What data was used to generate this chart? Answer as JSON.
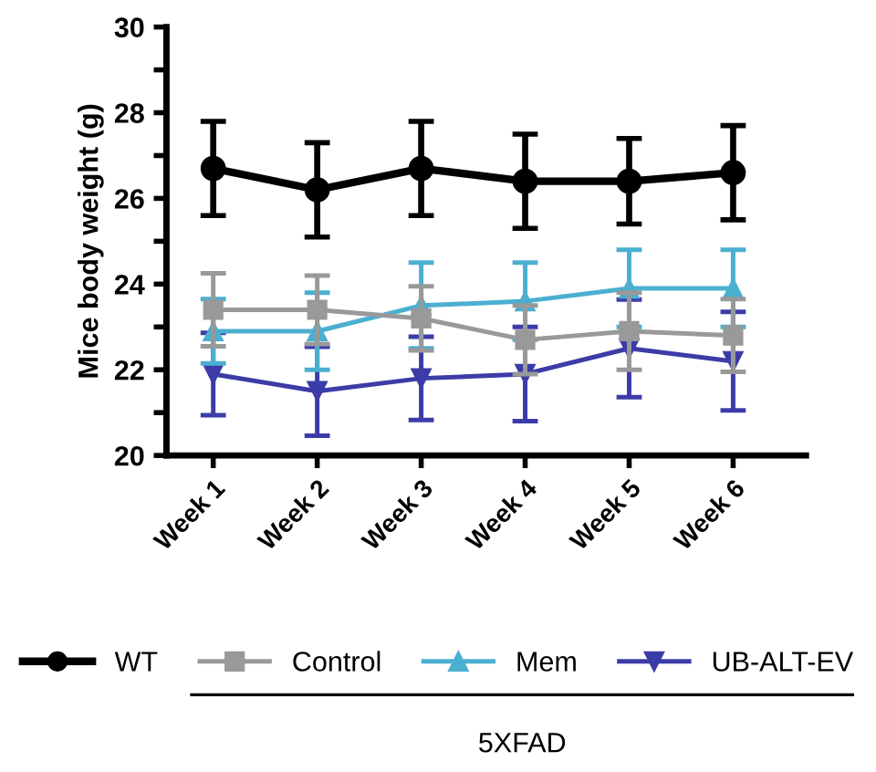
{
  "chart_data": {
    "type": "line",
    "ylabel": "Mice body weight (g)",
    "categories": [
      "Week 1",
      "Week 2",
      "Week 3",
      "Week 4",
      "Week 5",
      "Week 6"
    ],
    "series": [
      {
        "name": "WT",
        "color": "#000000",
        "marker": "circle",
        "values": [
          26.7,
          26.2,
          26.7,
          26.4,
          26.4,
          26.6
        ],
        "errors": [
          1.1,
          1.1,
          1.1,
          1.1,
          1.0,
          1.1
        ]
      },
      {
        "name": "Control",
        "color": "#999999",
        "marker": "square",
        "values": [
          23.4,
          23.4,
          23.2,
          22.7,
          22.9,
          22.8
        ],
        "errors": [
          0.85,
          0.8,
          0.75,
          0.8,
          0.9,
          0.85
        ]
      },
      {
        "name": "Mem",
        "color": "#4bafd0",
        "marker": "triangle",
        "values": [
          22.9,
          22.9,
          23.5,
          23.6,
          23.9,
          23.9
        ],
        "errors": [
          0.75,
          0.9,
          1.0,
          0.9,
          0.9,
          0.9
        ]
      },
      {
        "name": "UB-ALT-EV",
        "color": "#3c3ca8",
        "marker": "triangle_down",
        "values": [
          21.9,
          21.5,
          21.8,
          21.9,
          22.5,
          22.2
        ],
        "errors": [
          0.96,
          1.04,
          0.97,
          1.1,
          1.14,
          1.15
        ]
      }
    ],
    "ylim": [
      20,
      30
    ],
    "yticks": [
      20,
      {
        "value": 21,
        "label": null
      },
      22,
      {
        "value": 23,
        "label": null
      },
      24,
      {
        "value": 25,
        "label": null
      },
      26,
      {
        "value": 27,
        "label": null
      },
      28,
      {
        "value": 29,
        "label": null
      },
      30
    ],
    "grid": false,
    "legend": "bottom",
    "annotations": [
      "5XFAD"
    ]
  }
}
